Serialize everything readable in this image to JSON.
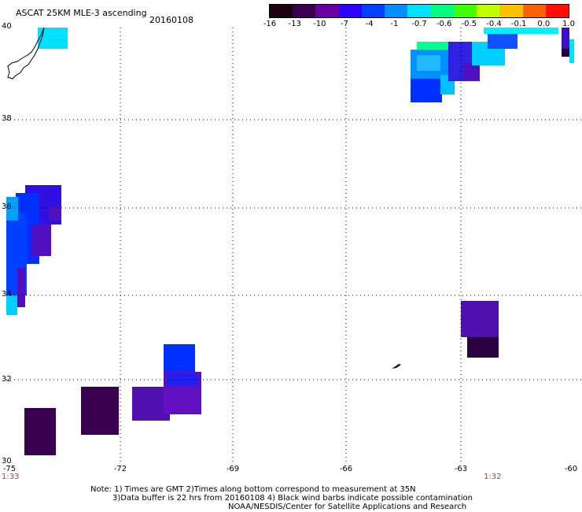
{
  "header": {
    "title": "ASCAT 25KM MLE-3 ascending",
    "date": "20160108"
  },
  "colorbar": {
    "labels": [
      "-16",
      "-13",
      "-10",
      "-7",
      "-4",
      "-1",
      "-0.7",
      "-0.6",
      "-0.5",
      "-0.4",
      "-0.1",
      "0.0",
      "1.0"
    ],
    "colors": [
      "#1a0010",
      "#3a0050",
      "#6a00a0",
      "#2a00ff",
      "#0040ff",
      "#0090ff",
      "#00e0ff",
      "#00ff80",
      "#40ff00",
      "#c0ff00",
      "#ffc000",
      "#ff6000",
      "#ff1000"
    ]
  },
  "axes": {
    "lat_labels": [
      "40",
      "38",
      "36",
      "34",
      "32",
      "30"
    ],
    "lon_labels": [
      "-75",
      "-72",
      "-69",
      "-66",
      "-63",
      "-60"
    ]
  },
  "times": {
    "left": "1:33",
    "right": "1:32"
  },
  "notes": {
    "line1": "Note: 1) Times are GMT 2)Times along bottom correspond to measurement at 35N",
    "line2": "3)Data buffer is 22 hrs from 20160108 4) Black wind barbs indicate possible contamination",
    "line3": "NOAA/NESDIS/Center for Satellite Applications and Research"
  },
  "colors": {
    "grid": "#000000",
    "coast": "#000000",
    "time_label": "#c0392b"
  }
}
